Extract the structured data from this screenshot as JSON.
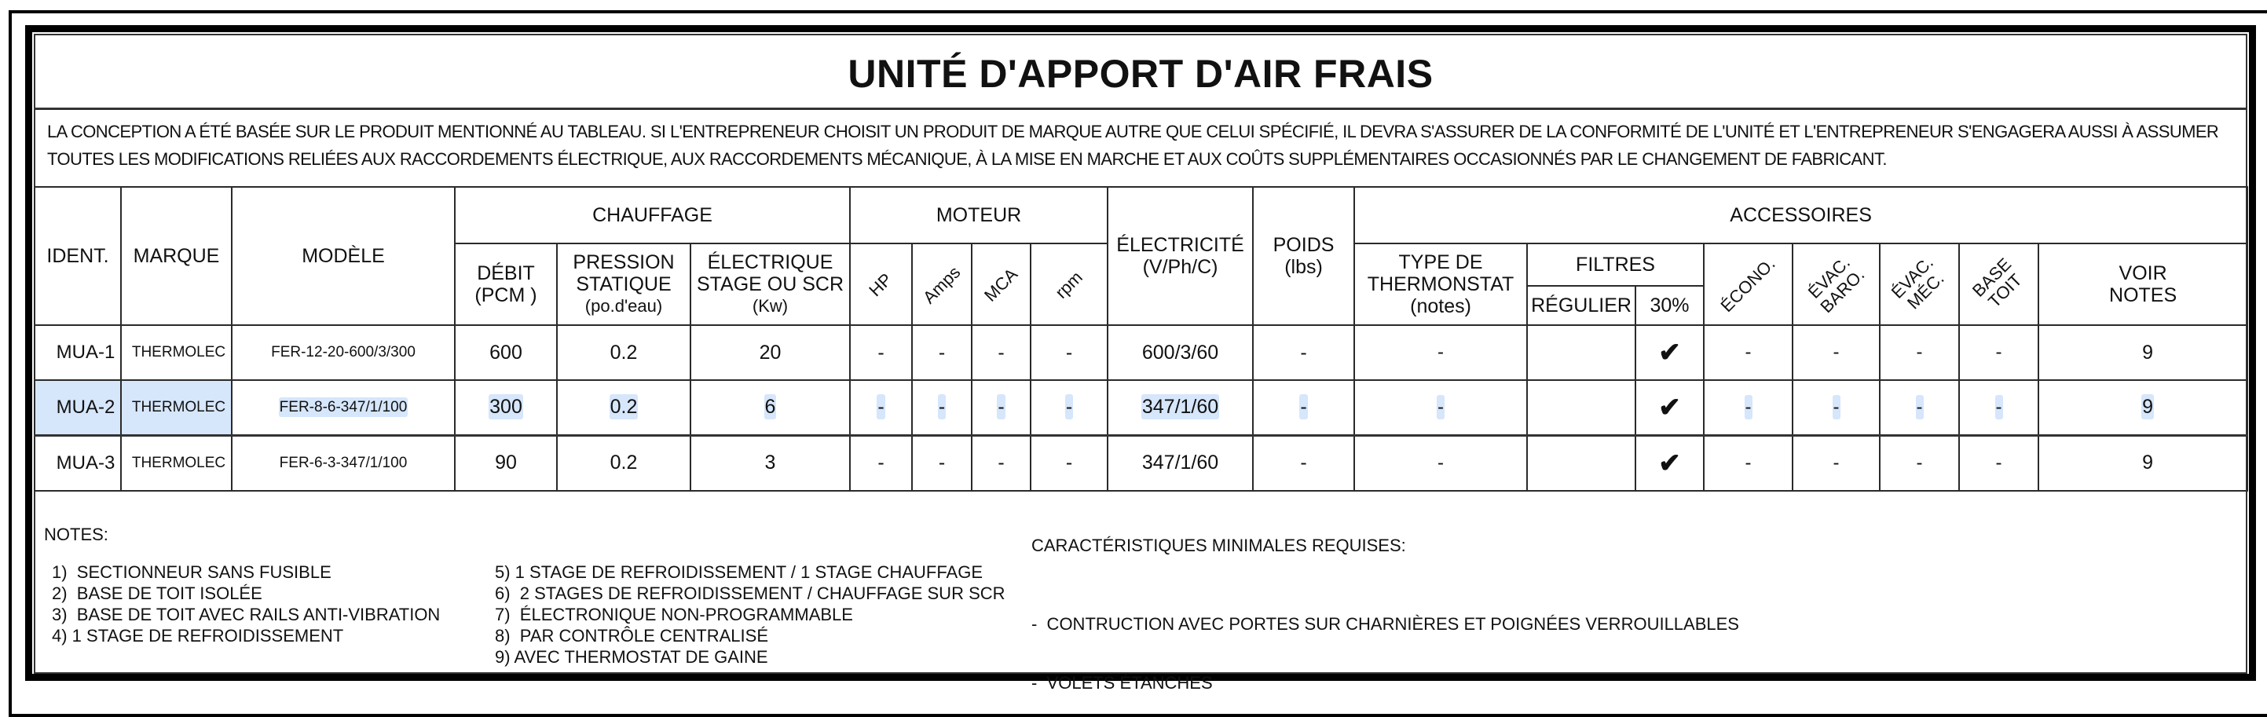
{
  "title": "UNITÉ D'APPORT D'AIR FRAIS",
  "disclaimer": {
    "line1": "LA CONCEPTION A ÉTÉ BASÉE SUR LE PRODUIT MENTIONNÉ AU TABLEAU. SI L'ENTREPRENEUR CHOISIT UN PRODUIT DE MARQUE AUTRE QUE CELUI SPÉCIFIÉ, IL DEVRA S'ASSURER DE LA CONFORMITÉ DE L'UNITÉ ET L'ENTREPRENEUR S'ENGAGERA AUSSI À ASSUMER",
    "line2": "TOUTES LES MODIFICATIONS RELIÉES AUX RACCORDEMENTS ÉLECTRIQUE, AUX RACCORDEMENTS MÉCANIQUE, À LA MISE EN MARCHE ET AUX COÛTS SUPPLÉMENTAIRES OCCASIONNÉS PAR LE CHANGEMENT DE FABRICANT."
  },
  "headers": {
    "ident": "IDENT.",
    "marque": "MARQUE",
    "modele": "MODÈLE",
    "chauffage": "CHAUFFAGE",
    "moteur": "MOTEUR",
    "electricite": [
      "ÉLECTRICITÉ",
      "(V/Ph/C)"
    ],
    "poids": [
      "POIDS",
      "(lbs)"
    ],
    "accessoires": "ACCESSOIRES",
    "debit": [
      "DÉBIT",
      "(PCM )"
    ],
    "pression": [
      "PRESSION",
      "STATIQUE",
      "(po.d'eau)"
    ],
    "electrique": [
      "ÉLECTRIQUE",
      "STAGE OU SCR",
      "(Kw)"
    ],
    "hp": "HP",
    "amps": "Amps",
    "mca": "MCA",
    "rpm": "rpm",
    "thermostat": [
      "TYPE DE",
      "THERMONSTAT",
      "(notes)"
    ],
    "filtres": "FILTRES",
    "regulier": "RÉGULIER",
    "trente": "30%",
    "econo": "ÉCONO.",
    "baro": [
      "ÉVAC.",
      "BARO."
    ],
    "mec": [
      "ÉVAC.",
      "MÉC."
    ],
    "base": [
      "BASE",
      "TOIT"
    ],
    "voir": [
      "VOIR",
      "NOTES"
    ]
  },
  "rows": [
    {
      "ident": "MUA-1",
      "marque": "THERMOLEC",
      "modele": "FER-12-20-600/3/300",
      "debit": "600",
      "pression": "0.2",
      "electrique": "20",
      "hp": "-",
      "amps": "-",
      "mca": "-",
      "rpm": "-",
      "electricite": "600/3/60",
      "poids": "-",
      "thermostat": "-",
      "regulier": "",
      "filtre30": "check-icon",
      "econo": "-",
      "baro": "-",
      "mec": "-",
      "base": "-",
      "notes": "9",
      "selected": false
    },
    {
      "ident": "MUA-2",
      "marque": "THERMOLEC",
      "modele": "FER-8-6-347/1/100",
      "debit": "300",
      "pression": "0.2",
      "electrique": "6",
      "hp": "-",
      "amps": "-",
      "mca": "-",
      "rpm": "-",
      "electricite": "347/1/60",
      "poids": "-",
      "thermostat": "-",
      "regulier": "",
      "filtre30": "check-icon",
      "econo": "-",
      "baro": "-",
      "mec": "-",
      "base": "-",
      "notes": "9",
      "selected": true
    },
    {
      "ident": "MUA-3",
      "marque": "THERMOLEC",
      "modele": "FER-6-3-347/1/100",
      "debit": "90",
      "pression": "0.2",
      "electrique": "3",
      "hp": "-",
      "amps": "-",
      "mca": "-",
      "rpm": "-",
      "electricite": "347/1/60",
      "poids": "-",
      "thermostat": "-",
      "regulier": "",
      "filtre30": "check-icon",
      "econo": "-",
      "baro": "-",
      "mec": "-",
      "base": "-",
      "notes": "9",
      "selected": false
    }
  ],
  "selection_color": "#d6e6fb",
  "notes": {
    "label": "NOTES:",
    "col1": [
      "1)  SECTIONNEUR SANS FUSIBLE",
      "2)  BASE DE TOIT ISOLÉE",
      "3)  BASE DE TOIT AVEC RAILS ANTI-VIBRATION",
      "4) 1 STAGE DE REFROIDISSEMENT"
    ],
    "col2": [
      "5) 1 STAGE DE REFROIDISSEMENT / 1 STAGE CHAUFFAGE",
      "6)  2 STAGES DE REFROIDISSEMENT / CHAUFFAGE SUR SCR",
      "7)  ÉLECTRONIQUE NON-PROGRAMMABLE",
      "8)  PAR CONTRÔLE CENTRALISÉ",
      "9) AVEC THERMOSTAT DE GAINE"
    ]
  },
  "caracteristiques": {
    "label": "CARACTÉRISTIQUES MINIMALES REQUISES:",
    "items": [
      "-  CONTRUCTION AVEC PORTES SUR CHARNIÈRES ET POIGNÉES VERROUILLABLES",
      "-  VOLETS ÉTANCHES"
    ]
  }
}
